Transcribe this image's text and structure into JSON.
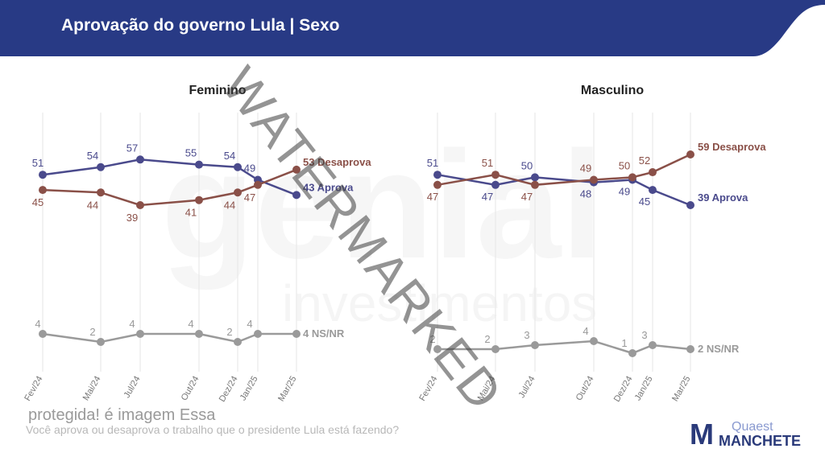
{
  "header": {
    "title": "Aprovação do governo Lula | Sexo"
  },
  "footer": {
    "note": "protegida! é imagem Essa",
    "question": "Você aprova ou desaprova o trabalho que o presidente Lula está fazendo?"
  },
  "watermark": "WATERMARKED",
  "background_watermark": {
    "brand": "genial",
    "sub": "investimentos"
  },
  "logo": {
    "mark": "M",
    "quaest": "Quaest",
    "manchete": "MANCHETE"
  },
  "colors": {
    "header": "#283a85",
    "aprova": "#4a4a8c",
    "desaprova": "#8a5048",
    "nsnr": "#9a9a9a"
  },
  "chart_data": [
    {
      "type": "line",
      "title": "Feminino",
      "categories": [
        "Fev/24",
        "Mai/24",
        "Jul/24",
        "Out/24",
        "Dez/24",
        "Jan/25",
        "Mar/25"
      ],
      "series": [
        {
          "name": "Aprova",
          "values": [
            51,
            54,
            57,
            55,
            54,
            49,
            43
          ],
          "end_label": "43 Aprova"
        },
        {
          "name": "Desaprova",
          "values": [
            45,
            44,
            39,
            41,
            44,
            47,
            53
          ],
          "end_label": "53 Desaprova"
        },
        {
          "name": "NS/NR",
          "values": [
            4,
            2,
            4,
            4,
            2,
            4,
            4
          ],
          "end_label": "4 NS/NR"
        }
      ]
    },
    {
      "type": "line",
      "title": "Masculino",
      "categories": [
        "Fev/24",
        "Mai/24",
        "Jul/24",
        "Out/24",
        "Dez/24",
        "Jan/25",
        "Mar/25"
      ],
      "series": [
        {
          "name": "Aprova",
          "values": [
            51,
            47,
            50,
            48,
            49,
            45,
            39
          ],
          "end_label": "39 Aprova"
        },
        {
          "name": "Desaprova",
          "values": [
            47,
            51,
            47,
            49,
            50,
            52,
            59
          ],
          "end_label": "59 Desaprova"
        },
        {
          "name": "NS/NR",
          "values": [
            2,
            2,
            3,
            4,
            1,
            3,
            2
          ],
          "end_label": "2 NS/NR"
        }
      ]
    }
  ]
}
